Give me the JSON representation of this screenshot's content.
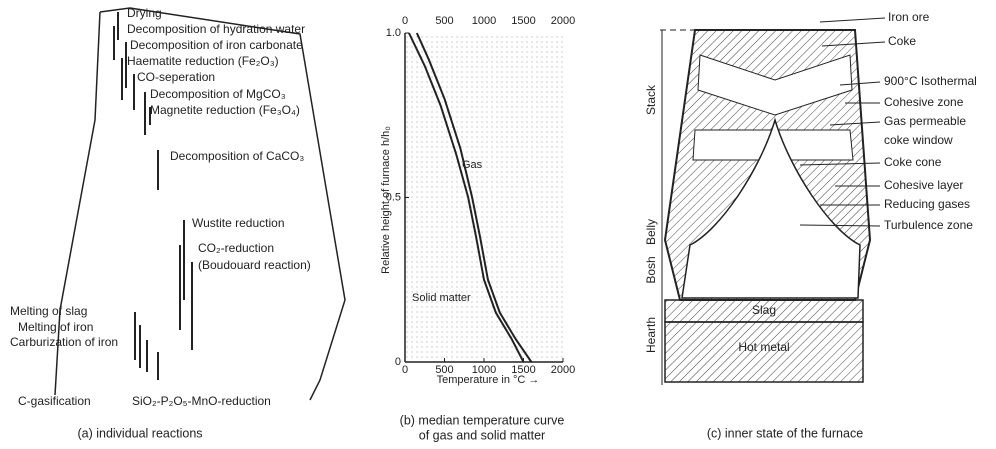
{
  "panel_a": {
    "reactions": [
      "Drying",
      "Decomposition of hydration water",
      "Decomposition of iron carbonate",
      "Haematite reduction (Fe₂O₃)",
      "CO-seperation",
      "Decomposition of MgCO₃",
      "Magnetite reduction (Fe₃O₄)",
      "Decomposition of CaCO₃",
      "Wustite reduction",
      "CO₂-reduction",
      "(Boudouard reaction)",
      "Melting of slag",
      "Melting of iron",
      "Carburization of iron",
      "C-gasification",
      "SiO₂-P₂O₅-MnO-reduction"
    ],
    "caption": "(a) individual reactions"
  },
  "panel_b": {
    "type": "line",
    "x_label": "Temperature in °C →",
    "y_label": "Relative height of furnace h/h₀",
    "xlim": [
      0,
      2000
    ],
    "ylim": [
      0,
      1
    ],
    "xticks": [
      0,
      500,
      1000,
      1500,
      2000
    ],
    "yticks": [
      0,
      0.5,
      {
        "value": 1,
        "label": "1.0"
      }
    ],
    "series": [
      {
        "name": "Gas",
        "x": [
          150,
          300,
          500,
          700,
          850,
          950,
          1050,
          1200,
          1400,
          1600
        ],
        "values": [
          1,
          0.92,
          0.8,
          0.65,
          0.5,
          0.38,
          0.25,
          0.15,
          0.07,
          0
        ]
      },
      {
        "name": "Solid matter",
        "x": [
          50,
          250,
          450,
          650,
          800,
          900,
          1000,
          1150,
          1350,
          1500
        ],
        "values": [
          1,
          0.9,
          0.78,
          0.63,
          0.5,
          0.38,
          0.25,
          0.15,
          0.07,
          0
        ]
      }
    ],
    "caption": [
      "(b) median temperature curve",
      "of gas and solid matter"
    ]
  },
  "panel_c": {
    "zones": [
      "Stack",
      "Belly",
      "Bosh",
      "Hearth"
    ],
    "labels": [
      "Iron ore",
      "Coke",
      "900°C Isothermal",
      "Cohesive zone",
      "Gas permeable",
      "coke window",
      "Coke cone",
      "Cohesive layer",
      "Reducing gases",
      "Turbulence zone"
    ],
    "slag": "Slag",
    "hot_metal": "Hot metal",
    "caption": "(c) inner state of the furnace"
  }
}
